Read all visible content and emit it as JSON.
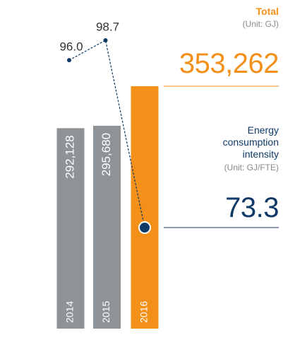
{
  "chart_data": {
    "type": "bar_line",
    "categories": [
      "2014",
      "2015",
      "2016"
    ],
    "series": [
      {
        "name": "Total",
        "unit": "(Unit: GJ)",
        "color": "#f39019",
        "past_color": "#8d9396",
        "values": [
          292128,
          295680,
          353262
        ],
        "value_labels": [
          "292,128",
          "295,680",
          "353,262"
        ]
      },
      {
        "name": "Energy consumption intensity",
        "unit": "(Unit: GJ/FTE)",
        "color": "#0f3a68",
        "values": [
          96.0,
          98.7,
          73.3
        ],
        "value_labels": [
          "96.0",
          "98.7",
          "73.3"
        ]
      }
    ]
  }
}
